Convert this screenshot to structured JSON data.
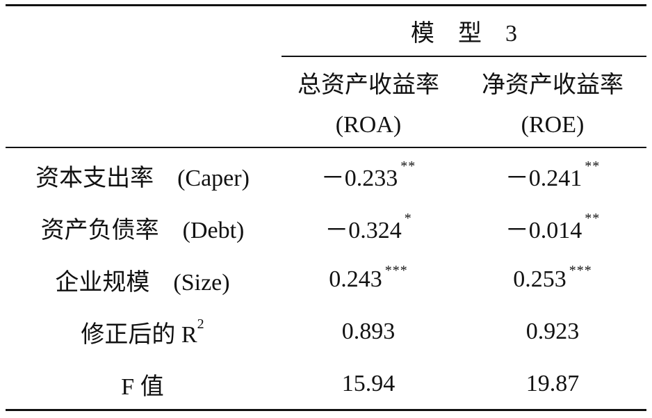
{
  "header": {
    "model": "模　型　3",
    "columns": [
      {
        "name": "总资产收益率",
        "abbr": "(ROA)"
      },
      {
        "name": "净资产收益率",
        "abbr": "(ROE)"
      }
    ]
  },
  "rows": [
    {
      "label": "资本支出率　(Caper)",
      "cells": [
        {
          "value": "－0.233",
          "stars": "**"
        },
        {
          "value": "－0.241",
          "stars": "**"
        }
      ]
    },
    {
      "label": "资产负债率　(Debt)",
      "cells": [
        {
          "value": "－0.324",
          "stars": "*"
        },
        {
          "value": "－0.014",
          "stars": "**"
        }
      ]
    },
    {
      "label": "企业规模　(Size)",
      "cells": [
        {
          "value": "0.243",
          "stars": "***"
        },
        {
          "value": "0.253",
          "stars": "***"
        }
      ]
    },
    {
      "label": "修正后的 R",
      "label_sup": "2",
      "cells": [
        {
          "value": "0.893"
        },
        {
          "value": "0.923"
        }
      ]
    },
    {
      "label": "F 值",
      "cells": [
        {
          "value": "15.94"
        },
        {
          "value": "19.87"
        }
      ]
    }
  ]
}
